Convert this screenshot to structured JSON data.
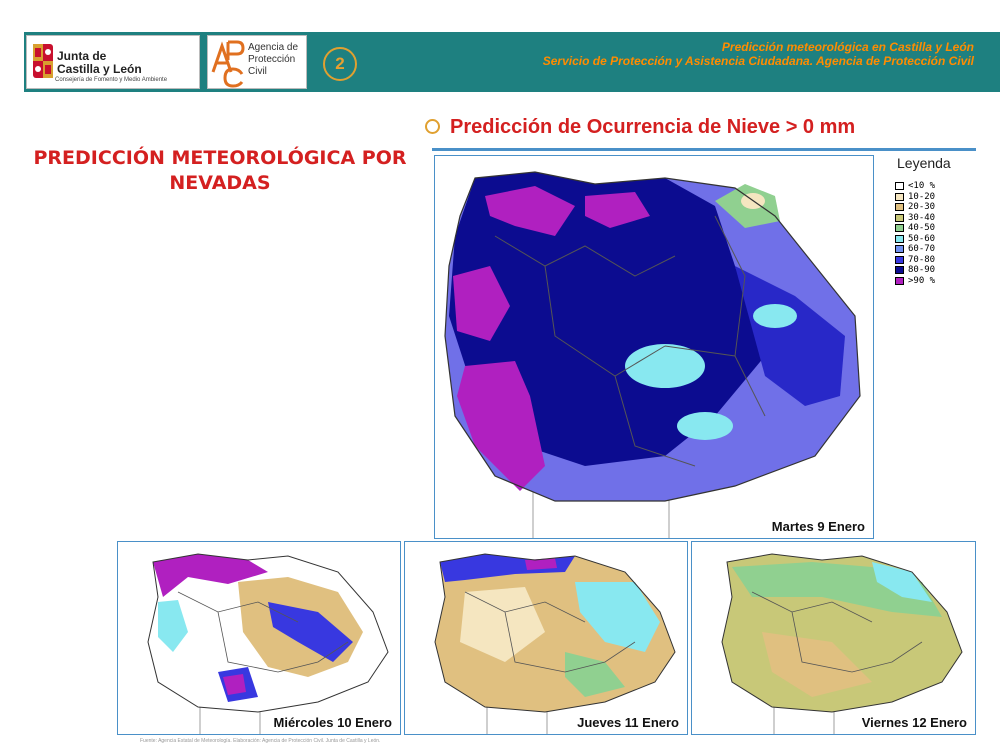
{
  "header": {
    "logo_jcyl": {
      "line1": "Junta de",
      "line2": "Castilla y León",
      "line3": "Consejería de Fomento y Medio Ambiente"
    },
    "logo_apc": {
      "mark": "APC",
      "name": "Agencia de Protección Civil"
    },
    "slide_number": "2",
    "line1": "Predicción meteorológica en Castilla y León",
    "line2": "Servicio de Protección y Asistencia Ciudadana. Agencia de Protección Civil"
  },
  "section_title": "PREDICCIÓN METEOROLÓGICA POR NEVADAS",
  "prediction_title": "Predicción de Ocurrencia de Nieve > 0 mm",
  "legend": {
    "title": "Leyenda",
    "items": [
      {
        "label": "<10 %",
        "color": "#ffffff"
      },
      {
        "label": "10-20",
        "color": "#f5e6c0"
      },
      {
        "label": "20-30",
        "color": "#e0c080"
      },
      {
        "label": "30-40",
        "color": "#c8c878"
      },
      {
        "label": "40-50",
        "color": "#90d090"
      },
      {
        "label": "50-60",
        "color": "#88e8f0"
      },
      {
        "label": "60-70",
        "color": "#7090f0"
      },
      {
        "label": "70-80",
        "color": "#3838e0"
      },
      {
        "label": "80-90",
        "color": "#0c0c90"
      },
      {
        "label": ">90 %",
        "color": "#b020c0"
      }
    ]
  },
  "maps": [
    {
      "label": "Martes 9 Enero",
      "intensity": "very high"
    },
    {
      "label": "Miércoles 10 Enero",
      "intensity": "moderate, high in north"
    },
    {
      "label": "Jueves 11 Enero",
      "intensity": "low to moderate"
    },
    {
      "label": "Viernes 12 Enero",
      "intensity": "low"
    }
  ],
  "footnote": "Fuente: Agencia Estatal de Meteorología. Elaboración: Agencia de Protección Civil. Junta de Castilla y León."
}
